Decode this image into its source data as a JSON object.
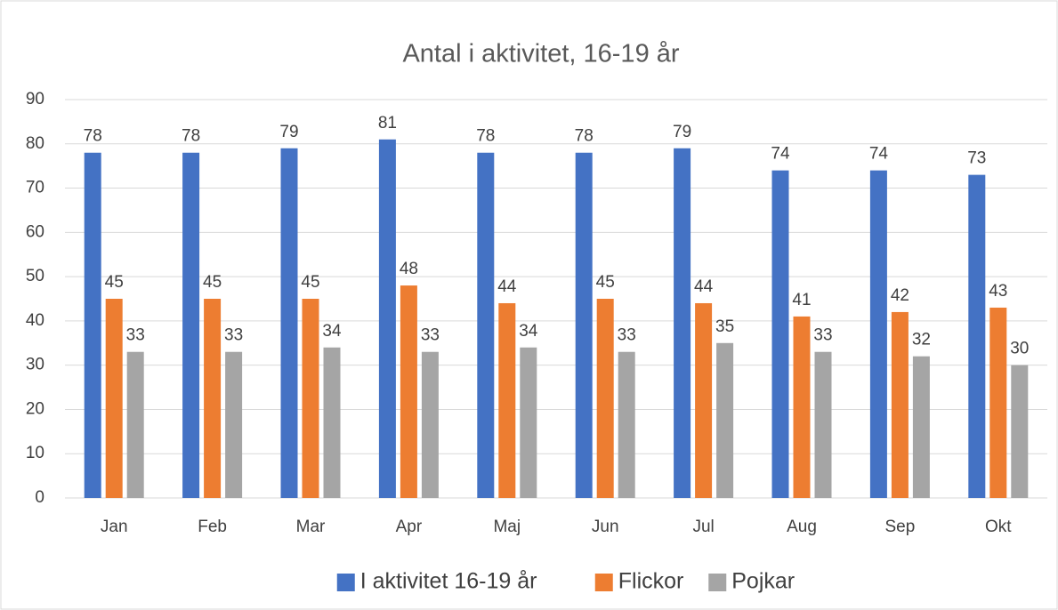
{
  "chart_data": {
    "type": "bar",
    "title": "Antal i aktivitet, 16-19 år",
    "categories": [
      "Jan",
      "Feb",
      "Mar",
      "Apr",
      "Maj",
      "Jun",
      "Jul",
      "Aug",
      "Sep",
      "Okt"
    ],
    "series": [
      {
        "name": "I aktivitet 16-19 år",
        "color": "#4472c4",
        "values": [
          78,
          78,
          79,
          81,
          78,
          78,
          79,
          74,
          74,
          73
        ]
      },
      {
        "name": "Flickor",
        "color": "#ed7d31",
        "values": [
          45,
          45,
          45,
          48,
          44,
          45,
          44,
          41,
          42,
          43
        ]
      },
      {
        "name": "Pojkar",
        "color": "#a5a5a5",
        "values": [
          33,
          33,
          34,
          33,
          34,
          33,
          35,
          33,
          32,
          30
        ]
      }
    ],
    "ylim": [
      0,
      90
    ],
    "yticks": [
      0,
      10,
      20,
      30,
      40,
      50,
      60,
      70,
      80,
      90
    ],
    "grid": true,
    "legend": "bottom"
  }
}
